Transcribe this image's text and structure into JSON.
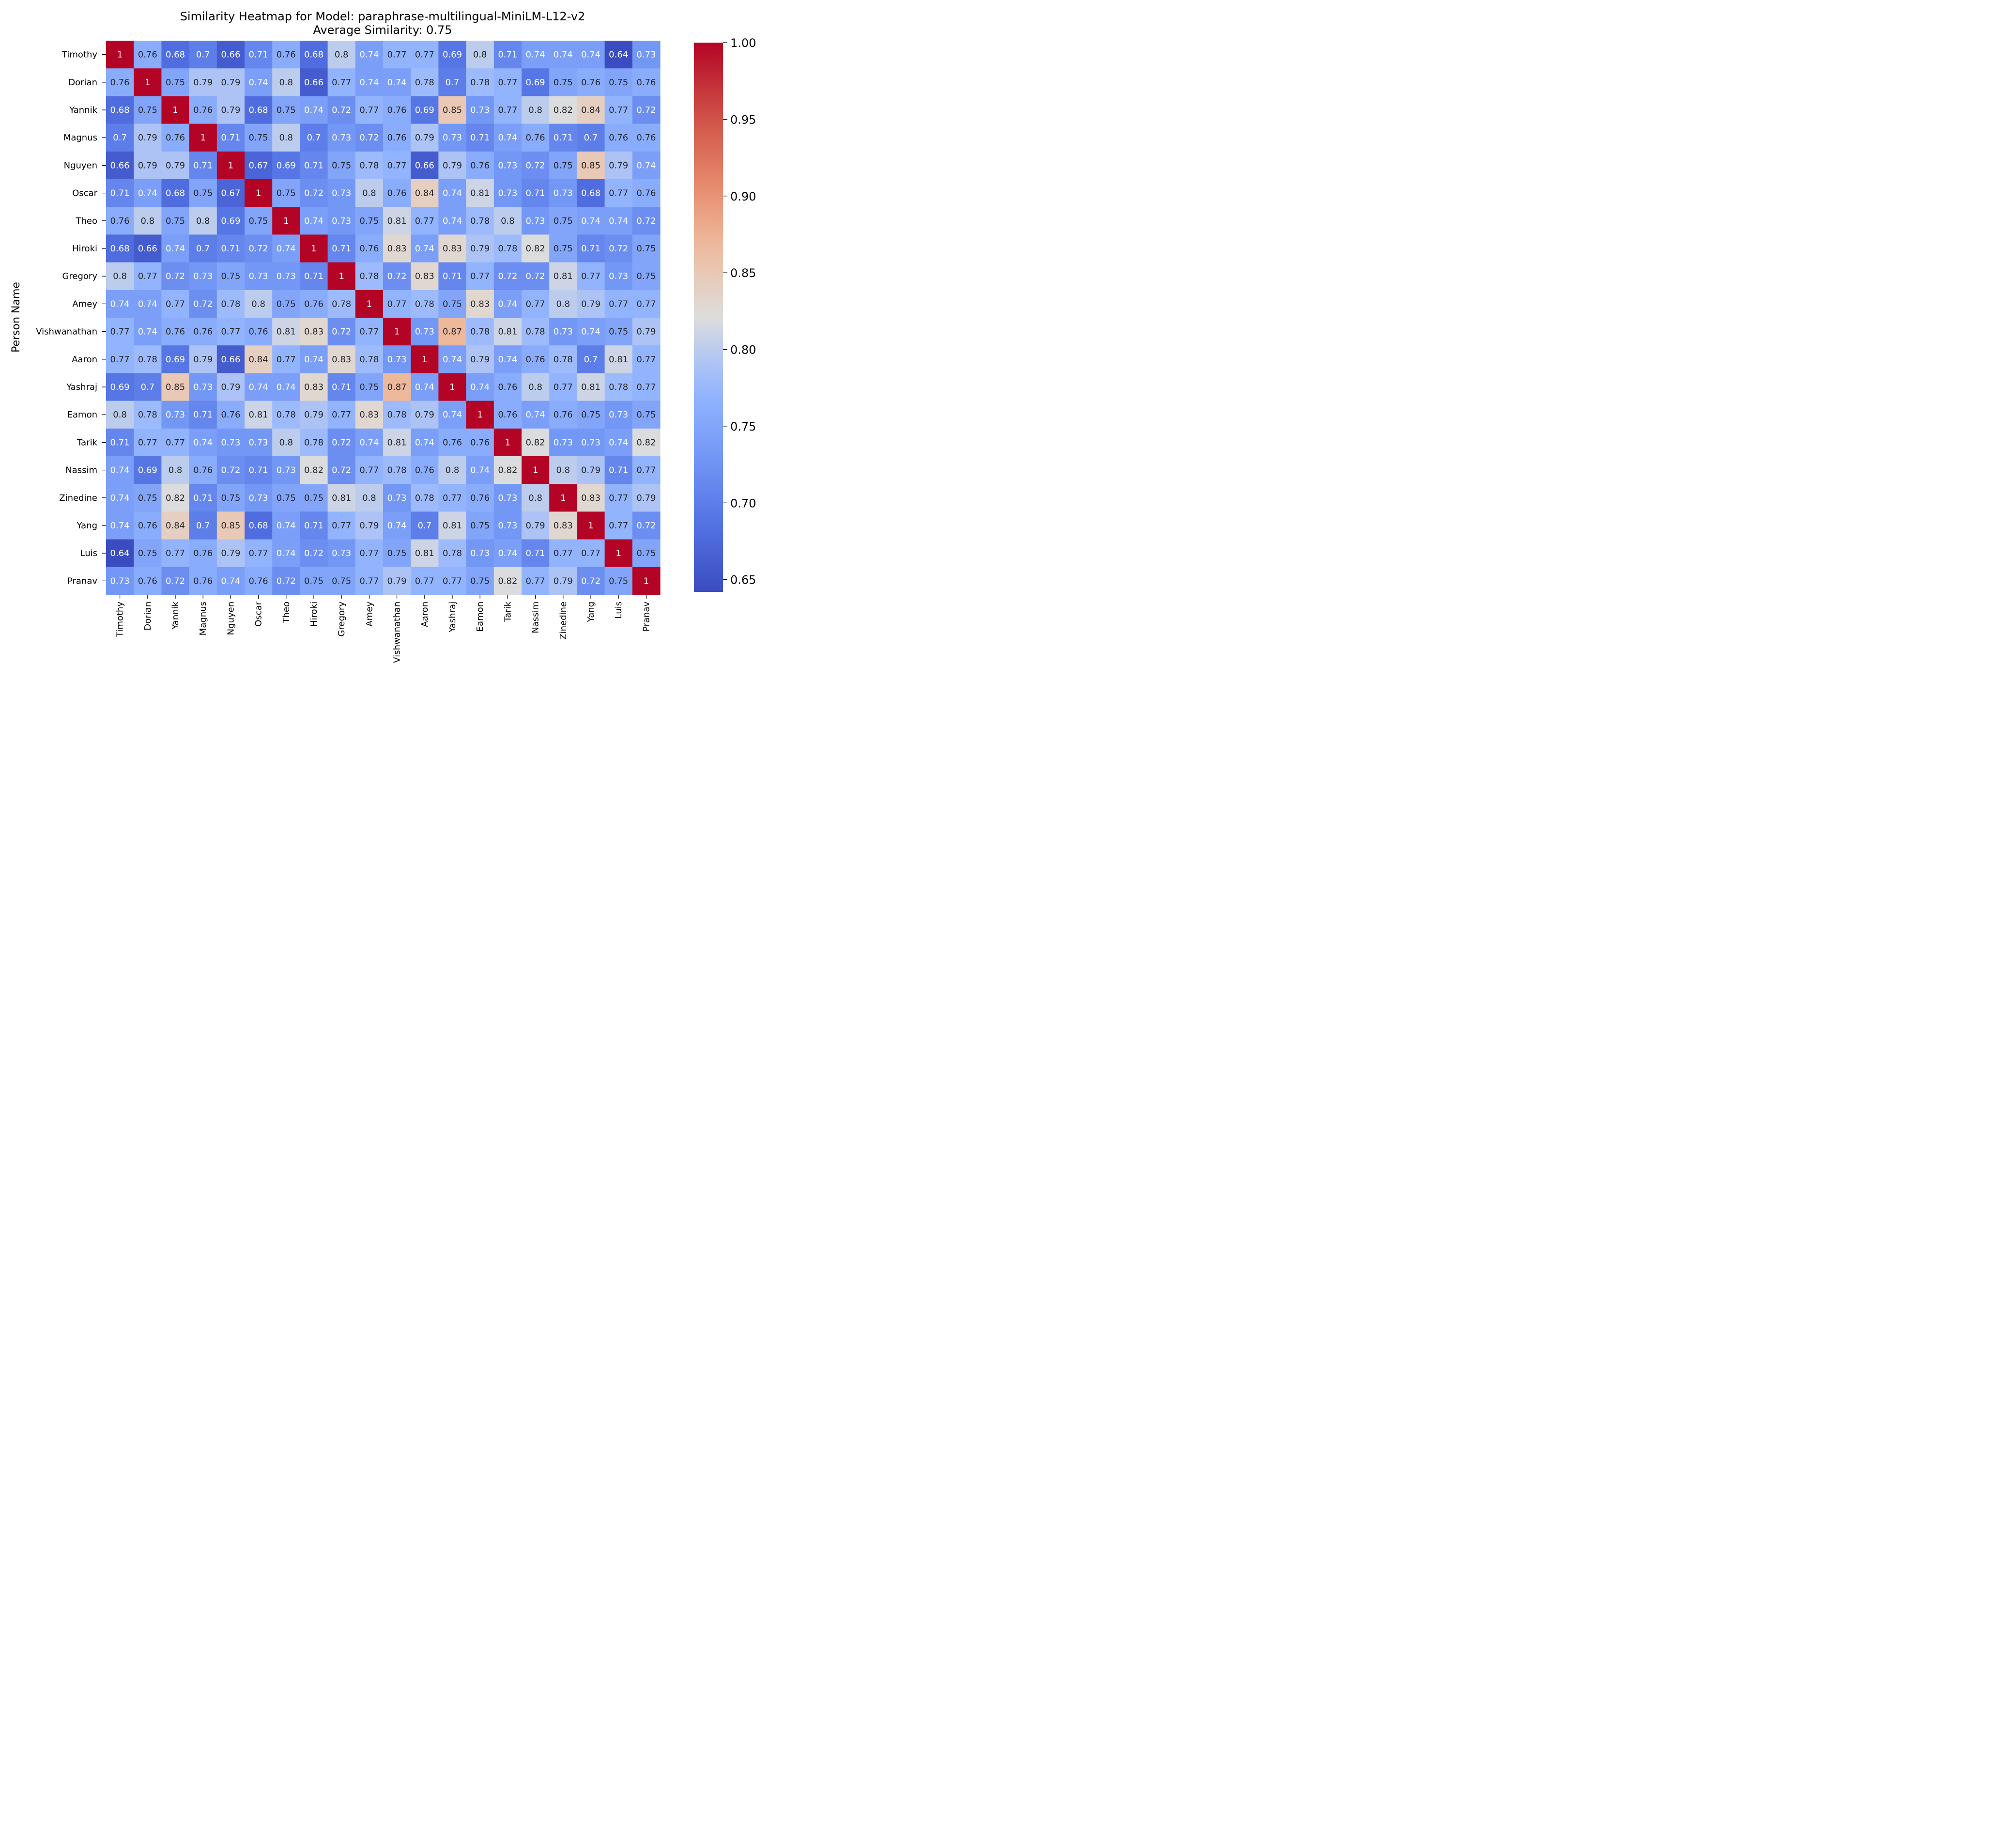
{
  "chart_data": {
    "type": "heatmap",
    "title": "Similarity Heatmap for Model: paraphrase-multilingual-MiniLM-L12-v2",
    "subtitle": "Average Similarity: 0.75",
    "ylabel": "Person Name",
    "xlabel": "",
    "colormap": "coolwarm",
    "vmin": 0.642,
    "vmax": 1.0,
    "colorbar_ticks": [
      "0.65",
      "0.70",
      "0.75",
      "0.80",
      "0.85",
      "0.90",
      "0.95",
      "1.00"
    ],
    "labels": [
      "Timothy",
      "Dorian",
      "Yannik",
      "Magnus",
      "Nguyen",
      "Oscar",
      "Theo",
      "Hiroki",
      "Gregory",
      "Amey",
      "Vishwanathan",
      "Aaron",
      "Yashraj",
      "Eamon",
      "Tarik",
      "Nassim",
      "Zinedine",
      "Yang",
      "Luis",
      "Pranav"
    ],
    "matrix": [
      [
        1,
        0.76,
        0.68,
        0.7,
        0.66,
        0.71,
        0.76,
        0.68,
        0.8,
        0.74,
        0.77,
        0.77,
        0.69,
        0.8,
        0.71,
        0.74,
        0.74,
        0.74,
        0.64,
        0.73
      ],
      [
        0.76,
        1,
        0.75,
        0.79,
        0.79,
        0.74,
        0.8,
        0.66,
        0.77,
        0.74,
        0.74,
        0.78,
        0.7,
        0.78,
        0.77,
        0.69,
        0.75,
        0.76,
        0.75,
        0.76
      ],
      [
        0.68,
        0.75,
        1,
        0.76,
        0.79,
        0.68,
        0.75,
        0.74,
        0.72,
        0.77,
        0.76,
        0.69,
        0.85,
        0.73,
        0.77,
        0.8,
        0.82,
        0.84,
        0.77,
        0.72
      ],
      [
        0.7,
        0.79,
        0.76,
        1,
        0.71,
        0.75,
        0.8,
        0.7,
        0.73,
        0.72,
        0.76,
        0.79,
        0.73,
        0.71,
        0.74,
        0.76,
        0.71,
        0.7,
        0.76,
        0.76
      ],
      [
        0.66,
        0.79,
        0.79,
        0.71,
        1,
        0.67,
        0.69,
        0.71,
        0.75,
        0.78,
        0.77,
        0.66,
        0.79,
        0.76,
        0.73,
        0.72,
        0.75,
        0.85,
        0.79,
        0.74
      ],
      [
        0.71,
        0.74,
        0.68,
        0.75,
        0.67,
        1,
        0.75,
        0.72,
        0.73,
        0.8,
        0.76,
        0.84,
        0.74,
        0.81,
        0.73,
        0.71,
        0.73,
        0.68,
        0.77,
        0.76
      ],
      [
        0.76,
        0.8,
        0.75,
        0.8,
        0.69,
        0.75,
        1,
        0.74,
        0.73,
        0.75,
        0.81,
        0.77,
        0.74,
        0.78,
        0.8,
        0.73,
        0.75,
        0.74,
        0.74,
        0.72
      ],
      [
        0.68,
        0.66,
        0.74,
        0.7,
        0.71,
        0.72,
        0.74,
        1,
        0.71,
        0.76,
        0.83,
        0.74,
        0.83,
        0.79,
        0.78,
        0.82,
        0.75,
        0.71,
        0.72,
        0.75
      ],
      [
        0.8,
        0.77,
        0.72,
        0.73,
        0.75,
        0.73,
        0.73,
        0.71,
        1,
        0.78,
        0.72,
        0.83,
        0.71,
        0.77,
        0.72,
        0.72,
        0.81,
        0.77,
        0.73,
        0.75
      ],
      [
        0.74,
        0.74,
        0.77,
        0.72,
        0.78,
        0.8,
        0.75,
        0.76,
        0.78,
        1,
        0.77,
        0.78,
        0.75,
        0.83,
        0.74,
        0.77,
        0.8,
        0.79,
        0.77,
        0.77
      ],
      [
        0.77,
        0.74,
        0.76,
        0.76,
        0.77,
        0.76,
        0.81,
        0.83,
        0.72,
        0.77,
        1,
        0.73,
        0.87,
        0.78,
        0.81,
        0.78,
        0.73,
        0.74,
        0.75,
        0.79
      ],
      [
        0.77,
        0.78,
        0.69,
        0.79,
        0.66,
        0.84,
        0.77,
        0.74,
        0.83,
        0.78,
        0.73,
        1,
        0.74,
        0.79,
        0.74,
        0.76,
        0.78,
        0.7,
        0.81,
        0.77
      ],
      [
        0.69,
        0.7,
        0.85,
        0.73,
        0.79,
        0.74,
        0.74,
        0.83,
        0.71,
        0.75,
        0.87,
        0.74,
        1,
        0.74,
        0.76,
        0.8,
        0.77,
        0.81,
        0.78,
        0.77
      ],
      [
        0.8,
        0.78,
        0.73,
        0.71,
        0.76,
        0.81,
        0.78,
        0.79,
        0.77,
        0.83,
        0.78,
        0.79,
        0.74,
        1,
        0.76,
        0.74,
        0.76,
        0.75,
        0.73,
        0.75
      ],
      [
        0.71,
        0.77,
        0.77,
        0.74,
        0.73,
        0.73,
        0.8,
        0.78,
        0.72,
        0.74,
        0.81,
        0.74,
        0.76,
        0.76,
        1,
        0.82,
        0.73,
        0.73,
        0.74,
        0.82
      ],
      [
        0.74,
        0.69,
        0.8,
        0.76,
        0.72,
        0.71,
        0.73,
        0.82,
        0.72,
        0.77,
        0.78,
        0.76,
        0.8,
        0.74,
        0.82,
        1,
        0.8,
        0.79,
        0.71,
        0.77
      ],
      [
        0.74,
        0.75,
        0.82,
        0.71,
        0.75,
        0.73,
        0.75,
        0.75,
        0.81,
        0.8,
        0.73,
        0.78,
        0.77,
        0.76,
        0.73,
        0.8,
        1,
        0.83,
        0.77,
        0.79
      ],
      [
        0.74,
        0.76,
        0.84,
        0.7,
        0.85,
        0.68,
        0.74,
        0.71,
        0.77,
        0.79,
        0.74,
        0.7,
        0.81,
        0.75,
        0.73,
        0.79,
        0.83,
        1,
        0.77,
        0.72
      ],
      [
        0.64,
        0.75,
        0.77,
        0.76,
        0.79,
        0.77,
        0.74,
        0.72,
        0.73,
        0.77,
        0.75,
        0.81,
        0.78,
        0.73,
        0.74,
        0.71,
        0.77,
        0.77,
        1,
        0.75
      ],
      [
        0.73,
        0.76,
        0.72,
        0.76,
        0.74,
        0.76,
        0.72,
        0.75,
        0.75,
        0.77,
        0.79,
        0.77,
        0.77,
        0.75,
        0.82,
        0.77,
        0.79,
        0.72,
        0.75,
        1
      ]
    ]
  }
}
